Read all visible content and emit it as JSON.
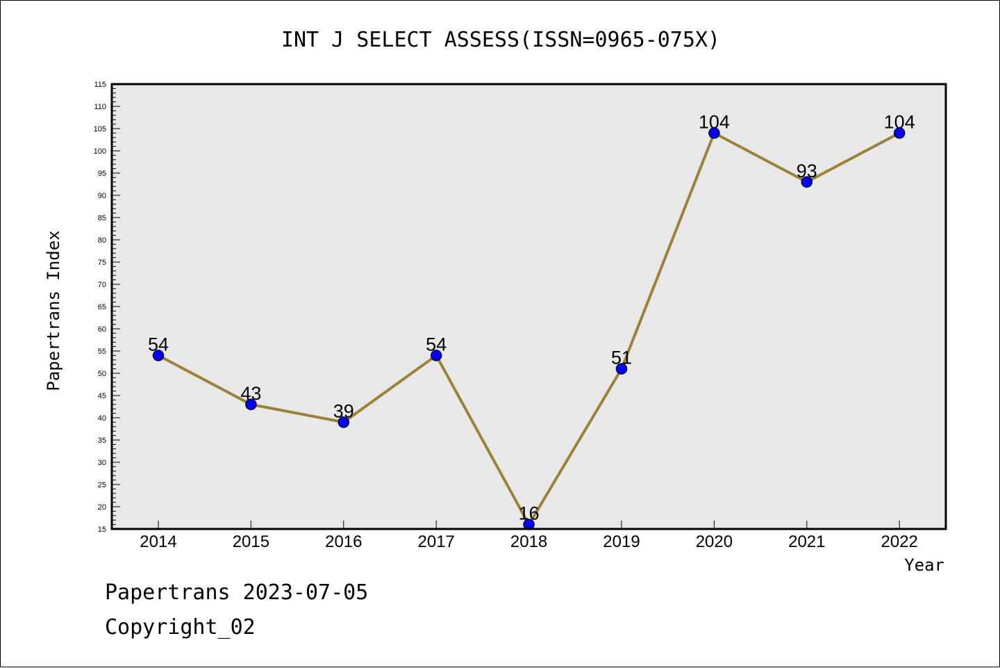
{
  "chart_data": {
    "type": "line",
    "title": "INT J SELECT ASSESS(ISSN=0965-075X)",
    "xlabel": "Year",
    "ylabel": "Papertrans Index",
    "categories": [
      "2014",
      "2015",
      "2016",
      "2017",
      "2018",
      "2019",
      "2020",
      "2021",
      "2022"
    ],
    "series": [
      {
        "values": [
          54,
          43,
          39,
          54,
          16,
          51,
          104,
          93,
          104
        ]
      }
    ],
    "data_labels": [
      "54",
      "43",
      "39",
      "54",
      "16",
      "51",
      "104",
      "93",
      "104"
    ],
    "ylim": [
      15,
      115
    ],
    "ytick_step": 5,
    "grid": false,
    "colors": {
      "plot_background": "#e8e8e8",
      "line": "#9a8338",
      "marker_fill": "#0000ff",
      "marker_stroke": "#000033"
    }
  },
  "footer": {
    "line1": "Papertrans 2023-07-05",
    "line2": "Copyright_02"
  }
}
